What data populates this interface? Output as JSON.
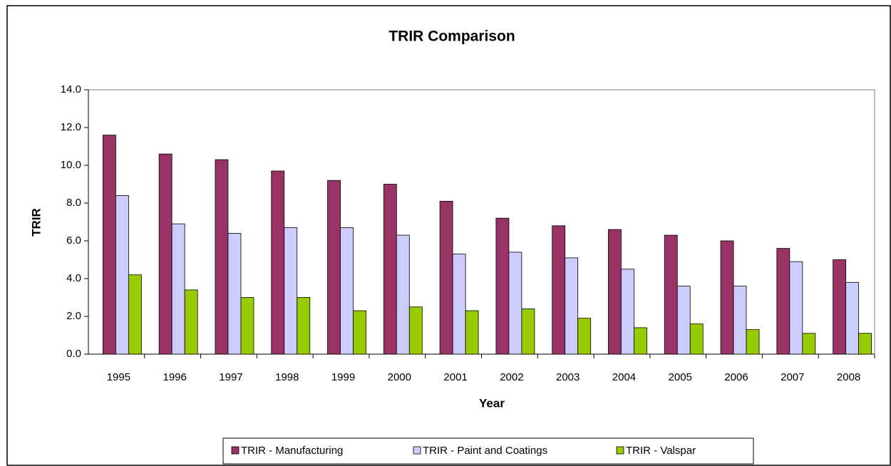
{
  "chart_data": {
    "type": "bar",
    "title": "TRIR Comparison",
    "x_label": "Year",
    "y_label": "TRIR",
    "categories": [
      "1995",
      "1996",
      "1997",
      "1998",
      "1999",
      "2000",
      "2001",
      "2002",
      "2003",
      "2004",
      "2005",
      "2006",
      "2007",
      "2008"
    ],
    "series": [
      {
        "name": "TRIR - Manufacturing",
        "color": "#993366",
        "values": [
          11.6,
          10.6,
          10.3,
          9.7,
          9.2,
          9.0,
          8.1,
          7.2,
          6.8,
          6.6,
          6.3,
          6.0,
          5.6,
          5.0
        ]
      },
      {
        "name": "TRIR - Paint and Coatings",
        "color": "#ccccff",
        "values": [
          8.4,
          6.9,
          6.4,
          6.7,
          6.7,
          6.3,
          5.3,
          5.4,
          5.1,
          4.5,
          3.6,
          3.6,
          4.9,
          3.8
        ]
      },
      {
        "name": "TRIR - Valspar",
        "color": "#99cc00",
        "values": [
          4.2,
          3.4,
          3.0,
          3.0,
          2.3,
          2.5,
          2.3,
          2.4,
          1.9,
          1.4,
          1.6,
          1.3,
          1.1,
          1.1
        ]
      }
    ],
    "ylim": [
      0,
      14
    ],
    "yticks": [
      {
        "value": 0,
        "label": "0.0"
      },
      {
        "value": 2,
        "label": "2.0"
      },
      {
        "value": 4,
        "label": "4.0"
      },
      {
        "value": 6,
        "label": "6.0"
      },
      {
        "value": 8,
        "label": "8.0"
      },
      {
        "value": 10,
        "label": "10.0"
      },
      {
        "value": 12,
        "label": "12.0"
      },
      {
        "value": 14,
        "label": "14.0"
      }
    ],
    "legend": "bottom"
  }
}
